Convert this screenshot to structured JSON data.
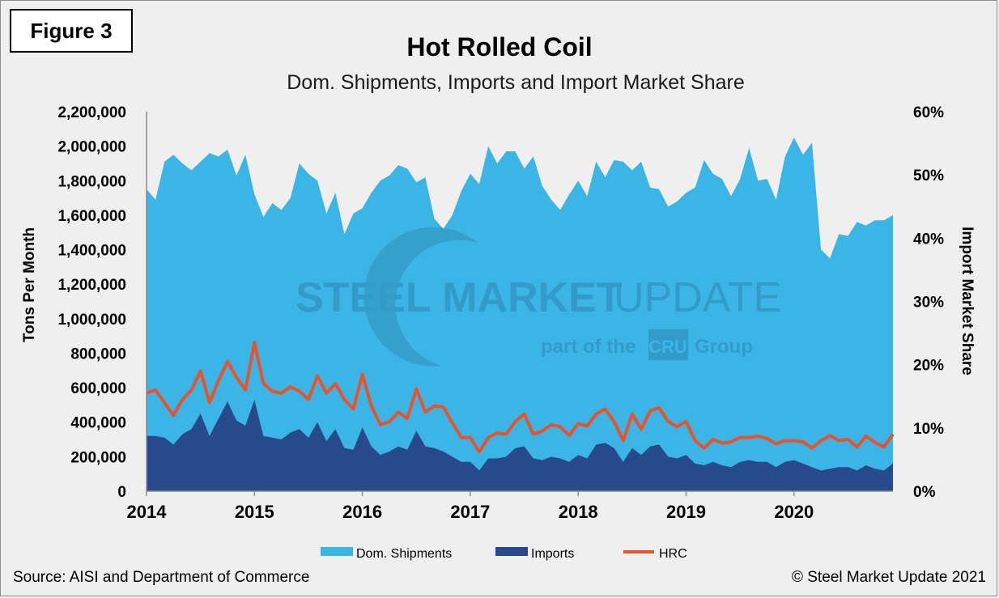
{
  "figure_label": "Figure 3",
  "source": "Source: AISI and Department of Commerce",
  "copyright": "© Steel Market Update 2021",
  "watermark": {
    "line1_bold": "STEEL MARKET",
    "line1_light": "UPDATE",
    "line2_left": "part of the",
    "badge": "CRU",
    "line2_right": "Group"
  },
  "colors": {
    "dom_shipments": "#3bb5e6",
    "imports": "#284a8c",
    "hrc": "#e8532a",
    "background": "#efefef"
  },
  "chart_data": {
    "type": "area",
    "title": "Hot Rolled Coil",
    "subtitle": "Dom. Shipments, Imports and Import Market Share",
    "ylabel": "Tons Per Month",
    "y2label": "Import Market Share",
    "ylim": [
      0,
      2200000
    ],
    "y2lim": [
      0,
      0.6
    ],
    "yticks": [
      "0",
      "200,000",
      "400,000",
      "600,000",
      "800,000",
      "1,000,000",
      "1,200,000",
      "1,400,000",
      "1,600,000",
      "1,800,000",
      "2,000,000",
      "2,200,000"
    ],
    "y2ticks": [
      "0%",
      "10%",
      "20%",
      "30%",
      "40%",
      "50%",
      "60%"
    ],
    "xticks": [
      "2014",
      "2015",
      "2016",
      "2017",
      "2018",
      "2019",
      "2020"
    ],
    "x_start": "2014-01",
    "x_end": "2020-12",
    "grid": false,
    "legend_position": "bottom",
    "series": [
      {
        "name": "Dom. Shipments",
        "kind": "area",
        "axis": "left",
        "values": [
          1750000,
          1690000,
          1910000,
          1950000,
          1900000,
          1860000,
          1910000,
          1960000,
          1940000,
          1980000,
          1830000,
          1950000,
          1720000,
          1590000,
          1670000,
          1630000,
          1700000,
          1900000,
          1840000,
          1800000,
          1610000,
          1730000,
          1490000,
          1610000,
          1640000,
          1730000,
          1800000,
          1830000,
          1890000,
          1870000,
          1790000,
          1820000,
          1580000,
          1520000,
          1600000,
          1740000,
          1840000,
          1780000,
          2000000,
          1900000,
          1970000,
          1970000,
          1870000,
          1940000,
          1770000,
          1690000,
          1630000,
          1720000,
          1800000,
          1710000,
          1910000,
          1820000,
          1920000,
          1910000,
          1860000,
          1910000,
          1760000,
          1750000,
          1650000,
          1680000,
          1730000,
          1760000,
          1920000,
          1840000,
          1810000,
          1710000,
          1810000,
          1990000,
          1800000,
          1810000,
          1690000,
          1940000,
          2050000,
          1950000,
          2020000,
          1400000,
          1350000,
          1490000,
          1480000,
          1560000,
          1540000,
          1570000,
          1570000,
          1600000
        ]
      },
      {
        "name": "Imports",
        "kind": "area",
        "axis": "left",
        "values": [
          320000,
          320000,
          310000,
          270000,
          330000,
          360000,
          450000,
          320000,
          420000,
          520000,
          410000,
          380000,
          530000,
          320000,
          310000,
          300000,
          340000,
          360000,
          310000,
          400000,
          290000,
          360000,
          250000,
          240000,
          370000,
          260000,
          210000,
          230000,
          260000,
          240000,
          350000,
          260000,
          250000,
          230000,
          200000,
          170000,
          170000,
          120000,
          190000,
          190000,
          200000,
          250000,
          260000,
          190000,
          180000,
          200000,
          190000,
          170000,
          210000,
          190000,
          270000,
          280000,
          250000,
          170000,
          250000,
          210000,
          260000,
          270000,
          200000,
          190000,
          210000,
          160000,
          150000,
          170000,
          150000,
          140000,
          170000,
          180000,
          170000,
          170000,
          140000,
          170000,
          180000,
          160000,
          140000,
          120000,
          130000,
          140000,
          140000,
          120000,
          150000,
          130000,
          120000,
          160000
        ]
      },
      {
        "name": "HRC",
        "kind": "line",
        "axis": "right",
        "values": [
          0.155,
          0.16,
          0.14,
          0.12,
          0.145,
          0.16,
          0.19,
          0.14,
          0.175,
          0.205,
          0.18,
          0.16,
          0.235,
          0.17,
          0.158,
          0.155,
          0.165,
          0.158,
          0.145,
          0.182,
          0.155,
          0.17,
          0.145,
          0.13,
          0.185,
          0.135,
          0.105,
          0.11,
          0.125,
          0.115,
          0.162,
          0.125,
          0.135,
          0.133,
          0.108,
          0.085,
          0.085,
          0.062,
          0.085,
          0.092,
          0.09,
          0.11,
          0.122,
          0.09,
          0.095,
          0.105,
          0.102,
          0.088,
          0.107,
          0.103,
          0.122,
          0.13,
          0.11,
          0.08,
          0.122,
          0.098,
          0.127,
          0.132,
          0.11,
          0.102,
          0.11,
          0.08,
          0.068,
          0.082,
          0.076,
          0.078,
          0.085,
          0.085,
          0.087,
          0.083,
          0.075,
          0.08,
          0.08,
          0.078,
          0.068,
          0.08,
          0.088,
          0.08,
          0.082,
          0.07,
          0.087,
          0.077,
          0.07,
          0.09
        ]
      }
    ]
  }
}
